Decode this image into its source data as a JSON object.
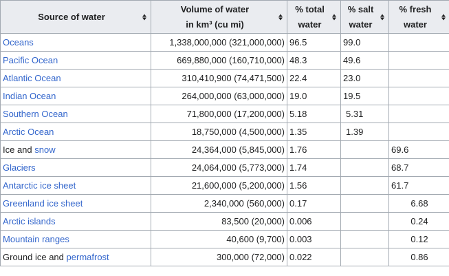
{
  "headers": {
    "source": "Source of water",
    "volume_line1": "Volume of water",
    "volume_line2": "in km³ (cu mi)",
    "total_line1": "% total",
    "total_line2": "water",
    "salt_line1": "% salt",
    "salt_line2": "water",
    "fresh_line1": "% fresh",
    "fresh_line2": "water"
  },
  "rows": [
    {
      "name": "Oceans",
      "volume": "1,338,000,000 (321,000,000)",
      "total": "96.5",
      "salt": "99.0",
      "fresh": ""
    },
    {
      "name": "Pacific Ocean",
      "volume": "669,880,000 (160,710,000)",
      "total": "48.3",
      "salt": "49.6",
      "fresh": ""
    },
    {
      "name": "Atlantic Ocean",
      "volume": "310,410,900 (74,471,500)",
      "total": "22.4",
      "salt": "23.0",
      "fresh": ""
    },
    {
      "name": "Indian Ocean",
      "volume": "264,000,000 (63,000,000)",
      "total": "19.0",
      "salt": "19.5",
      "fresh": ""
    },
    {
      "name": "Southern Ocean",
      "volume": "71,800,000 (17,200,000)",
      "total": "5.18",
      "salt": "5.31",
      "fresh": ""
    },
    {
      "name": "Arctic Ocean",
      "volume": "18,750,000 (4,500,000)",
      "total": "1.35",
      "salt": "1.39",
      "fresh": ""
    },
    {
      "name_plain": "Ice and",
      "name_link": "snow",
      "volume": "24,364,000 (5,845,000)",
      "total": "1.76",
      "salt": "",
      "fresh": "69.6"
    },
    {
      "name": "Glaciers",
      "volume": "24,064,000 (5,773,000)",
      "total": "1.74",
      "salt": "",
      "fresh": "68.7"
    },
    {
      "name": "Antarctic ice sheet",
      "volume": "21,600,000 (5,200,000)",
      "total": "1.56",
      "salt": "",
      "fresh": "61.7"
    },
    {
      "name": "Greenland ice sheet",
      "volume": "2,340,000 (560,000)",
      "total": "0.17",
      "salt": "",
      "fresh": "6.68"
    },
    {
      "name": "Arctic islands",
      "volume": "83,500 (20,000)",
      "total": "0.006",
      "salt": "",
      "fresh": "0.24"
    },
    {
      "name": "Mountain ranges",
      "volume": "40,600 (9,700)",
      "total": "0.003",
      "salt": "",
      "fresh": "0.12"
    },
    {
      "name_plain": "Ground ice and",
      "name_link": "permafrost",
      "volume": "300,000 (72,000)",
      "total": "0.022",
      "salt": "",
      "fresh": "0.86"
    }
  ]
}
